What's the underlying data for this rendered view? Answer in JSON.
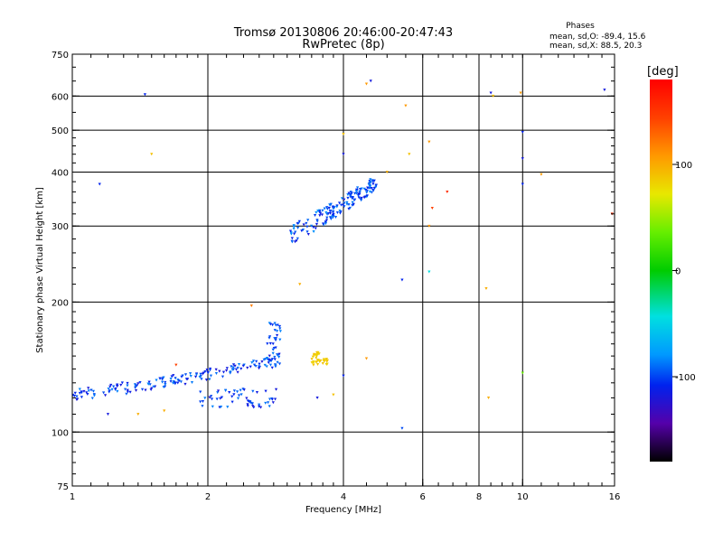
{
  "chart_data": {
    "type": "scatter",
    "title": "Tromsø 20130806 20:46:00-20:47:43",
    "subtitle": "RwPretec (8p)",
    "xlabel": "Frequency [MHz]",
    "ylabel": "Stationary phase Virtual Height [km]",
    "x_scale": "log",
    "y_scale": "log",
    "xlim": [
      1,
      16
    ],
    "ylim": [
      75,
      750
    ],
    "x_ticks": [
      1,
      2,
      4,
      6,
      8,
      10,
      16
    ],
    "x_tick_labels": [
      "1",
      "2",
      "4",
      "6",
      "8",
      "10",
      "16"
    ],
    "y_ticks": [
      75,
      100,
      200,
      300,
      400,
      500,
      600,
      750
    ],
    "y_tick_labels": [
      "75",
      "100",
      "200",
      "300",
      "400",
      "500",
      "600",
      "750"
    ],
    "grid": true,
    "phases_header": "Phases",
    "phase_stats": [
      "mean, sd,O: -89.4, 15.6",
      "mean, sd,X:  88.5, 20.3"
    ],
    "colorbar": {
      "label": "[deg]",
      "min": -180,
      "max": 180,
      "ticks": [
        100,
        0,
        -100
      ],
      "tick_labels": [
        "100",
        "0",
        "-100"
      ]
    },
    "clusters": [
      {
        "name": "E-layer trace",
        "f_min": 1.0,
        "f_max": 2.9,
        "h_min": 115,
        "h_max": 175,
        "phase": -105
      },
      {
        "name": "F-layer trace",
        "f_min": 3.0,
        "f_max": 4.8,
        "h_min": 280,
        "h_max": 380,
        "phase": -100
      },
      {
        "name": "yellow cluster",
        "f_min": 3.4,
        "f_max": 3.7,
        "h_min": 143,
        "h_max": 152,
        "phase": 95
      }
    ]
  }
}
